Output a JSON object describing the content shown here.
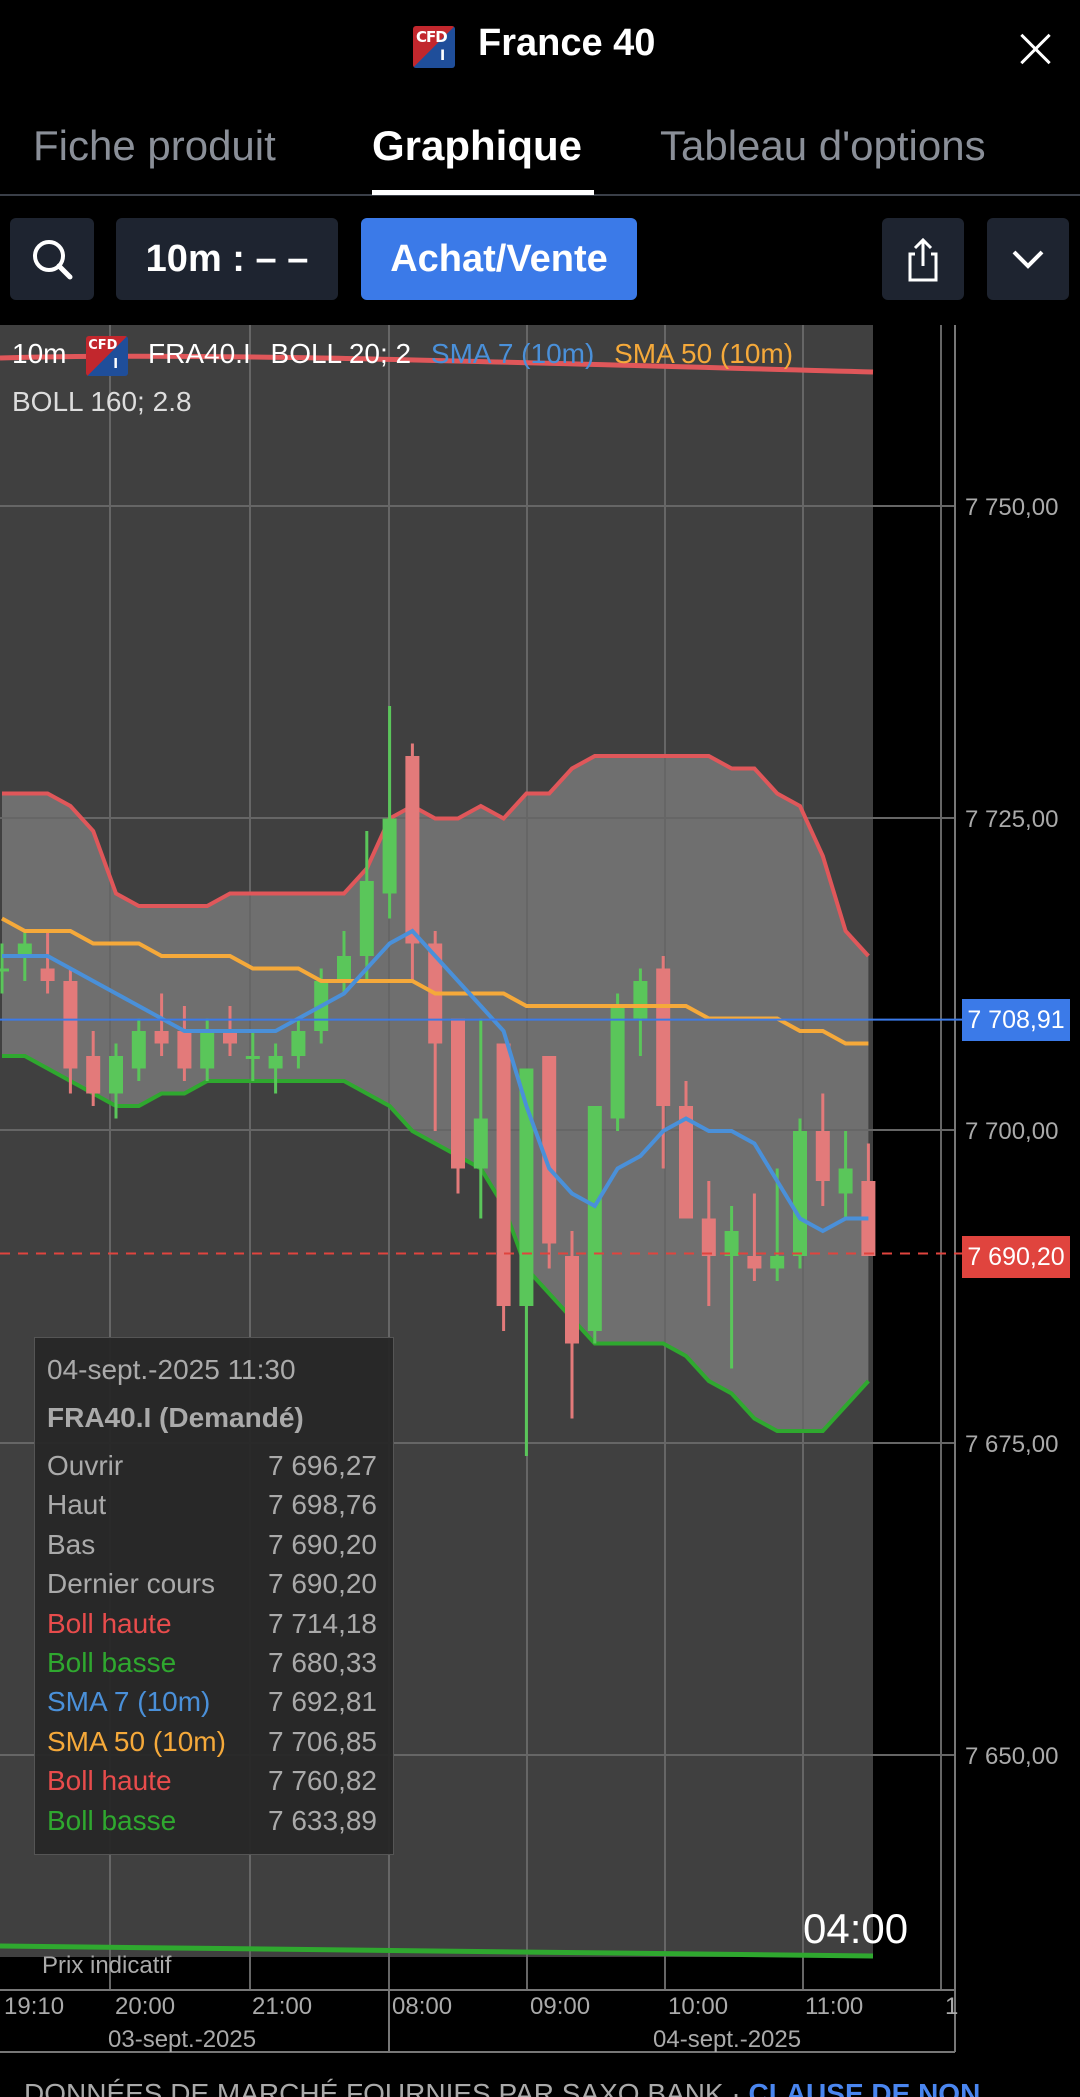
{
  "header": {
    "badge_top": "CFD",
    "badge_bottom": "I",
    "title": "France 40"
  },
  "tabs": [
    {
      "label": "Fiche produit"
    },
    {
      "label": "Graphique"
    },
    {
      "label": "Tableau d'options"
    }
  ],
  "toolbar": {
    "interval": "10m : – –",
    "buy_sell": "Achat/Vente"
  },
  "legend": {
    "interval": "10m",
    "instrument": "FRA40.I",
    "boll1": "BOLL 20; 2",
    "sma7": "SMA 7 (10m)",
    "sma50": "SMA 50 (10m)",
    "boll2": "BOLL 160; 2.8"
  },
  "colors": {
    "boll_upper": "#e0575a",
    "boll_lower": "#2fa82f",
    "sma7": "#4a90d9",
    "sma50": "#f5a93a",
    "bull": "#5ac65a",
    "bear": "#e37a7a",
    "accent": "#3b7ae8"
  },
  "axis": {
    "y_labels": [
      "7 750,00",
      "7 725,00",
      "7 700,00",
      "7 675,00",
      "7 650,00"
    ],
    "x_labels": [
      "19:10",
      "20:00",
      "21:00",
      "08:00",
      "09:00",
      "10:00",
      "11:00",
      "1"
    ],
    "dates": [
      "03-sept.-2025",
      "04-sept.-2025"
    ]
  },
  "price_tags": {
    "current": "7 708,91",
    "last": "7 690,20"
  },
  "tooltip": {
    "date": "04-sept.-2025 11:30",
    "instrument": "FRA40.I (Demandé)",
    "rows": [
      {
        "k": "Ouvrir",
        "v": "7 696,27",
        "color": "#aaaaaa"
      },
      {
        "k": "Haut",
        "v": "7 698,76",
        "color": "#aaaaaa"
      },
      {
        "k": "Bas",
        "v": "7 690,20",
        "color": "#aaaaaa"
      },
      {
        "k": "Dernier cours",
        "v": "7 690,20",
        "color": "#aaaaaa"
      },
      {
        "k": "Boll haute",
        "v": "7 714,18",
        "color": "#e84c4c"
      },
      {
        "k": "Boll basse",
        "v": "7 680,33",
        "color": "#2fa82f"
      },
      {
        "k": "SMA 7 (10m)",
        "v": "7 692,81",
        "color": "#4a90d9"
      },
      {
        "k": "SMA 50 (10m)",
        "v": "7 706,85",
        "color": "#f5a93a"
      },
      {
        "k": "Boll haute",
        "v": "7 760,82",
        "color": "#e84c4c"
      },
      {
        "k": "Boll basse",
        "v": "7 633,89",
        "color": "#2fa82f"
      }
    ]
  },
  "countdown": "04:00",
  "indicative": "Prix indicatif",
  "footer": {
    "text": "DONNÉES DE MARCHÉ FOURNIES PAR SAXO BANK · ",
    "link": "CLAUSE DE NON"
  },
  "chart_data": {
    "type": "candlestick",
    "ylim": [
      7633,
      7762
    ],
    "candles": [
      {
        "o": 7713,
        "h": 7715,
        "l": 7711,
        "c": 7713
      },
      {
        "o": 7714,
        "h": 7716,
        "l": 7712,
        "c": 7715
      },
      {
        "o": 7713,
        "h": 7716,
        "l": 7711,
        "c": 7712
      },
      {
        "o": 7712,
        "h": 7713,
        "l": 7703,
        "c": 7705
      },
      {
        "o": 7706,
        "h": 7708,
        "l": 7702,
        "c": 7703
      },
      {
        "o": 7703,
        "h": 7707,
        "l": 7701,
        "c": 7706
      },
      {
        "o": 7705,
        "h": 7709,
        "l": 7704,
        "c": 7708
      },
      {
        "o": 7708,
        "h": 7711,
        "l": 7706,
        "c": 7707
      },
      {
        "o": 7708,
        "h": 7710,
        "l": 7704,
        "c": 7705
      },
      {
        "o": 7705,
        "h": 7709,
        "l": 7704,
        "c": 7708
      },
      {
        "o": 7708,
        "h": 7710,
        "l": 7706,
        "c": 7707
      },
      {
        "o": 7706,
        "h": 7708,
        "l": 7704,
        "c": 7706
      },
      {
        "o": 7705,
        "h": 7707,
        "l": 7703,
        "c": 7706
      },
      {
        "o": 7706,
        "h": 7709,
        "l": 7705,
        "c": 7708
      },
      {
        "o": 7708,
        "h": 7713,
        "l": 7707,
        "c": 7712
      },
      {
        "o": 7712,
        "h": 7716,
        "l": 7711,
        "c": 7714
      },
      {
        "o": 7714,
        "h": 7724,
        "l": 7712,
        "c": 7720
      },
      {
        "o": 7719,
        "h": 7734,
        "l": 7717,
        "c": 7725
      },
      {
        "o": 7730,
        "h": 7731,
        "l": 7712,
        "c": 7715
      },
      {
        "o": 7715,
        "h": 7716,
        "l": 7700,
        "c": 7707
      },
      {
        "o": 7709,
        "h": 7709,
        "l": 7695,
        "c": 7697
      },
      {
        "o": 7697,
        "h": 7709,
        "l": 7693,
        "c": 7701
      },
      {
        "o": 7707,
        "h": 7707,
        "l": 7684,
        "c": 7686
      },
      {
        "o": 7686,
        "h": 7705,
        "l": 7674,
        "c": 7705
      },
      {
        "o": 7706,
        "h": 7706,
        "l": 7689,
        "c": 7691
      },
      {
        "o": 7690,
        "h": 7692,
        "l": 7677,
        "c": 7683
      },
      {
        "o": 7684,
        "h": 7702,
        "l": 7683,
        "c": 7702
      },
      {
        "o": 7701,
        "h": 7711,
        "l": 7700,
        "c": 7710
      },
      {
        "o": 7709,
        "h": 7713,
        "l": 7706,
        "c": 7712
      },
      {
        "o": 7713,
        "h": 7714,
        "l": 7697,
        "c": 7702
      },
      {
        "o": 7702,
        "h": 7704,
        "l": 7693,
        "c": 7693
      },
      {
        "o": 7693,
        "h": 7696,
        "l": 7686,
        "c": 7690
      },
      {
        "o": 7690,
        "h": 7694,
        "l": 7681,
        "c": 7692
      },
      {
        "o": 7690,
        "h": 7695,
        "l": 7688,
        "c": 7689
      },
      {
        "o": 7689,
        "h": 7697,
        "l": 7688,
        "c": 7690
      },
      {
        "o": 7690,
        "h": 7701,
        "l": 7689,
        "c": 7700
      },
      {
        "o": 7700,
        "h": 7703,
        "l": 7694,
        "c": 7696
      },
      {
        "o": 7695,
        "h": 7700,
        "l": 7693,
        "c": 7697
      },
      {
        "o": 7696,
        "h": 7699,
        "l": 7690,
        "c": 7690
      }
    ],
    "boll_upper": [
      7727,
      7727,
      7727,
      7726,
      7724,
      7719,
      7718,
      7718,
      7718,
      7718,
      7719,
      7719,
      7719,
      7719,
      7719,
      7719,
      7721,
      7725,
      7726,
      7725,
      7725,
      7726,
      7725,
      7727,
      7727,
      7729,
      7730,
      7730,
      7730,
      7730,
      7730,
      7730,
      7729,
      7729,
      7727,
      7726,
      7722,
      7716,
      7714
    ],
    "boll_lower": [
      7706,
      7706,
      7705,
      7704,
      7703,
      7702,
      7702,
      7703,
      7703,
      7704,
      7704,
      7704,
      7704,
      7704,
      7704,
      7704,
      7703,
      7702,
      7700,
      7699,
      7698,
      7697,
      7694,
      7689,
      7687,
      7685,
      7683,
      7683,
      7683,
      7683,
      7682,
      7680,
      7679,
      7677,
      7676,
      7676,
      7676,
      7678,
      7680
    ],
    "sma7": [
      7714,
      7714,
      7714,
      7713,
      7712,
      7711,
      7710,
      7709,
      7708,
      7708,
      7708,
      7708,
      7708,
      7709,
      7710,
      7711,
      7713,
      7715,
      7716,
      7714,
      7712,
      7710,
      7708,
      7702,
      7697,
      7695,
      7694,
      7697,
      7698,
      7700,
      7701,
      7700,
      7700,
      7699,
      7696,
      7693,
      7692,
      7693,
      7693
    ],
    "sma50": [
      7717,
      7716,
      7716,
      7716,
      7715,
      7715,
      7715,
      7714,
      7714,
      7714,
      7714,
      7713,
      7713,
      7713,
      7712,
      7712,
      7712,
      7712,
      7712,
      7711,
      7711,
      7711,
      7711,
      7710,
      7710,
      7710,
      7710,
      7710,
      7710,
      7710,
      7710,
      7709,
      7709,
      7709,
      7709,
      7708,
      7708,
      7707,
      7707
    ],
    "boll2_upper": 7760.82,
    "boll2_lower": 7633.89,
    "current_line": 7708.91,
    "last_line": 7690.2
  }
}
